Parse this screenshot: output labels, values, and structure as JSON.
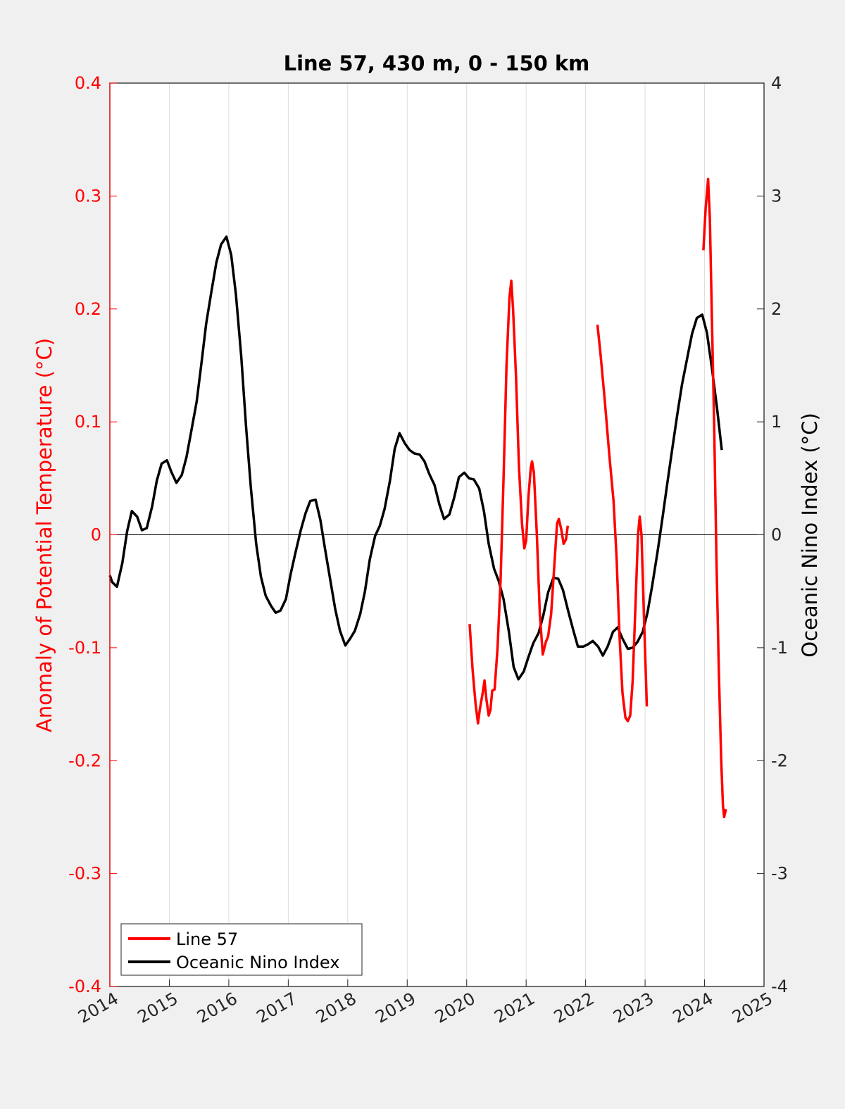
{
  "chart_data": {
    "type": "line",
    "title": "Line 57, 430 m, 0 - 150 km",
    "xlim": [
      2014,
      2025
    ],
    "x_ticks": [
      "2014",
      "2015",
      "2016",
      "2017",
      "2018",
      "2019",
      "2020",
      "2021",
      "2022",
      "2023",
      "2024",
      "2025"
    ],
    "left_axis": {
      "label": "Anomaly of Potential Temperature (°C)",
      "ylim": [
        -0.4,
        0.4
      ],
      "ticks": [
        "0.4",
        "0.3",
        "0.2",
        "0.1",
        "0",
        "-0.1",
        "-0.2",
        "-0.3",
        "-0.4"
      ],
      "color": "#ff0000"
    },
    "right_axis": {
      "label": "Oceanic Nino Index (°C)",
      "ylim": [
        -4,
        4
      ],
      "ticks": [
        "4",
        "3",
        "2",
        "1",
        "0",
        "-1",
        "-2",
        "-3",
        "-4"
      ],
      "color": "#000000"
    },
    "grid": "vertical",
    "zero_line": true,
    "legend_position": "bottom-left",
    "series": [
      {
        "name": "Line 57",
        "axis": "left",
        "color": "#ff0000",
        "segments": [
          [
            [
              2020.05,
              -0.079
            ],
            [
              2020.1,
              -0.12
            ],
            [
              2020.15,
              -0.15
            ],
            [
              2020.19,
              -0.167
            ],
            [
              2020.22,
              -0.155
            ],
            [
              2020.27,
              -0.14
            ],
            [
              2020.3,
              -0.129
            ],
            [
              2020.33,
              -0.145
            ],
            [
              2020.37,
              -0.16
            ],
            [
              2020.4,
              -0.155
            ],
            [
              2020.43,
              -0.138
            ],
            [
              2020.47,
              -0.137
            ],
            [
              2020.52,
              -0.1
            ],
            [
              2020.57,
              -0.04
            ],
            [
              2020.62,
              0.05
            ],
            [
              2020.67,
              0.15
            ],
            [
              2020.72,
              0.21
            ],
            [
              2020.75,
              0.225
            ],
            [
              2020.78,
              0.2
            ],
            [
              2020.83,
              0.14
            ],
            [
              2020.88,
              0.06
            ],
            [
              2020.93,
              0.01
            ],
            [
              2020.97,
              -0.012
            ],
            [
              2021.0,
              -0.005
            ],
            [
              2021.04,
              0.035
            ],
            [
              2021.08,
              0.06
            ],
            [
              2021.1,
              0.065
            ],
            [
              2021.13,
              0.055
            ],
            [
              2021.18,
              0.0
            ],
            [
              2021.23,
              -0.07
            ],
            [
              2021.28,
              -0.106
            ],
            [
              2021.33,
              -0.095
            ],
            [
              2021.37,
              -0.09
            ],
            [
              2021.42,
              -0.07
            ],
            [
              2021.47,
              -0.03
            ],
            [
              2021.52,
              0.01
            ],
            [
              2021.55,
              0.014
            ],
            [
              2021.59,
              0.005
            ],
            [
              2021.63,
              -0.008
            ],
            [
              2021.67,
              -0.004
            ],
            [
              2021.7,
              0.008
            ]
          ],
          [
            [
              2022.2,
              0.186
            ],
            [
              2022.25,
              0.16
            ],
            [
              2022.32,
              0.12
            ],
            [
              2022.4,
              0.07
            ],
            [
              2022.47,
              0.03
            ],
            [
              2022.52,
              -0.02
            ],
            [
              2022.57,
              -0.09
            ],
            [
              2022.62,
              -0.14
            ],
            [
              2022.67,
              -0.162
            ],
            [
              2022.71,
              -0.165
            ],
            [
              2022.75,
              -0.16
            ],
            [
              2022.79,
              -0.13
            ],
            [
              2022.84,
              -0.06
            ],
            [
              2022.88,
              0.0
            ],
            [
              2022.91,
              0.016
            ],
            [
              2022.94,
              0.0
            ],
            [
              2022.98,
              -0.07
            ],
            [
              2023.03,
              -0.152
            ]
          ],
          [
            [
              2023.98,
              0.252
            ],
            [
              2024.02,
              0.29
            ],
            [
              2024.06,
              0.315
            ],
            [
              2024.09,
              0.28
            ],
            [
              2024.12,
              0.2
            ],
            [
              2024.16,
              0.1
            ],
            [
              2024.2,
              -0.02
            ],
            [
              2024.24,
              -0.12
            ],
            [
              2024.28,
              -0.2
            ],
            [
              2024.31,
              -0.24
            ],
            [
              2024.33,
              -0.25
            ],
            [
              2024.36,
              -0.243
            ]
          ]
        ]
      },
      {
        "name": "Oceanic Nino Index",
        "axis": "right",
        "color": "#000000",
        "segments": [
          [
            [
              2014.0,
              -0.36
            ],
            [
              2014.04,
              -0.42
            ],
            [
              2014.12,
              -0.46
            ],
            [
              2014.21,
              -0.25
            ],
            [
              2014.29,
              0.03
            ],
            [
              2014.37,
              0.21
            ],
            [
              2014.46,
              0.16
            ],
            [
              2014.54,
              0.04
            ],
            [
              2014.62,
              0.06
            ],
            [
              2014.71,
              0.25
            ],
            [
              2014.79,
              0.48
            ],
            [
              2014.87,
              0.63
            ],
            [
              2014.96,
              0.66
            ],
            [
              2015.04,
              0.55
            ],
            [
              2015.12,
              0.46
            ],
            [
              2015.21,
              0.53
            ],
            [
              2015.29,
              0.69
            ],
            [
              2015.37,
              0.92
            ],
            [
              2015.46,
              1.18
            ],
            [
              2015.54,
              1.52
            ],
            [
              2015.62,
              1.87
            ],
            [
              2015.71,
              2.16
            ],
            [
              2015.79,
              2.41
            ],
            [
              2015.87,
              2.57
            ],
            [
              2015.96,
              2.64
            ],
            [
              2016.04,
              2.48
            ],
            [
              2016.12,
              2.13
            ],
            [
              2016.21,
              1.58
            ],
            [
              2016.29,
              0.96
            ],
            [
              2016.37,
              0.42
            ],
            [
              2016.46,
              -0.08
            ],
            [
              2016.54,
              -0.37
            ],
            [
              2016.62,
              -0.54
            ],
            [
              2016.71,
              -0.63
            ],
            [
              2016.79,
              -0.69
            ],
            [
              2016.87,
              -0.67
            ],
            [
              2016.96,
              -0.57
            ],
            [
              2017.04,
              -0.35
            ],
            [
              2017.12,
              -0.16
            ],
            [
              2017.21,
              0.04
            ],
            [
              2017.29,
              0.19
            ],
            [
              2017.37,
              0.3
            ],
            [
              2017.46,
              0.31
            ],
            [
              2017.54,
              0.13
            ],
            [
              2017.62,
              -0.13
            ],
            [
              2017.71,
              -0.41
            ],
            [
              2017.79,
              -0.66
            ],
            [
              2017.87,
              -0.85
            ],
            [
              2017.96,
              -0.98
            ],
            [
              2018.04,
              -0.92
            ],
            [
              2018.12,
              -0.85
            ],
            [
              2018.21,
              -0.7
            ],
            [
              2018.29,
              -0.5
            ],
            [
              2018.37,
              -0.22
            ],
            [
              2018.46,
              -0.01
            ],
            [
              2018.54,
              0.08
            ],
            [
              2018.62,
              0.23
            ],
            [
              2018.71,
              0.48
            ],
            [
              2018.79,
              0.76
            ],
            [
              2018.87,
              0.9
            ],
            [
              2018.96,
              0.81
            ],
            [
              2019.04,
              0.75
            ],
            [
              2019.12,
              0.72
            ],
            [
              2019.21,
              0.71
            ],
            [
              2019.29,
              0.65
            ],
            [
              2019.37,
              0.54
            ],
            [
              2019.46,
              0.44
            ],
            [
              2019.54,
              0.27
            ],
            [
              2019.62,
              0.14
            ],
            [
              2019.71,
              0.18
            ],
            [
              2019.79,
              0.33
            ],
            [
              2019.87,
              0.51
            ],
            [
              2019.96,
              0.55
            ],
            [
              2020.04,
              0.5
            ],
            [
              2020.12,
              0.49
            ],
            [
              2020.21,
              0.41
            ],
            [
              2020.29,
              0.21
            ],
            [
              2020.37,
              -0.08
            ],
            [
              2020.46,
              -0.3
            ],
            [
              2020.54,
              -0.41
            ],
            [
              2020.62,
              -0.57
            ],
            [
              2020.71,
              -0.86
            ],
            [
              2020.79,
              -1.17
            ],
            [
              2020.87,
              -1.28
            ],
            [
              2020.96,
              -1.21
            ],
            [
              2021.04,
              -1.08
            ],
            [
              2021.12,
              -0.96
            ],
            [
              2021.21,
              -0.87
            ],
            [
              2021.29,
              -0.71
            ],
            [
              2021.37,
              -0.51
            ],
            [
              2021.46,
              -0.38
            ],
            [
              2021.54,
              -0.39
            ],
            [
              2021.62,
              -0.49
            ],
            [
              2021.71,
              -0.68
            ],
            [
              2021.79,
              -0.84
            ],
            [
              2021.87,
              -0.99
            ],
            [
              2021.96,
              -0.99
            ],
            [
              2022.04,
              -0.97
            ],
            [
              2022.12,
              -0.94
            ],
            [
              2022.21,
              -0.99
            ],
            [
              2022.29,
              -1.07
            ],
            [
              2022.37,
              -0.99
            ],
            [
              2022.46,
              -0.86
            ],
            [
              2022.54,
              -0.82
            ],
            [
              2022.62,
              -0.92
            ],
            [
              2022.71,
              -1.01
            ],
            [
              2022.79,
              -1.0
            ],
            [
              2022.87,
              -0.95
            ],
            [
              2022.96,
              -0.86
            ],
            [
              2023.04,
              -0.69
            ],
            [
              2023.12,
              -0.45
            ],
            [
              2023.21,
              -0.15
            ],
            [
              2023.29,
              0.14
            ],
            [
              2023.37,
              0.44
            ],
            [
              2023.46,
              0.77
            ],
            [
              2023.54,
              1.06
            ],
            [
              2023.62,
              1.33
            ],
            [
              2023.71,
              1.57
            ],
            [
              2023.79,
              1.78
            ],
            [
              2023.87,
              1.92
            ],
            [
              2023.96,
              1.95
            ],
            [
              2024.04,
              1.79
            ],
            [
              2024.12,
              1.49
            ],
            [
              2024.21,
              1.12
            ],
            [
              2024.29,
              0.75
            ]
          ]
        ]
      }
    ]
  }
}
